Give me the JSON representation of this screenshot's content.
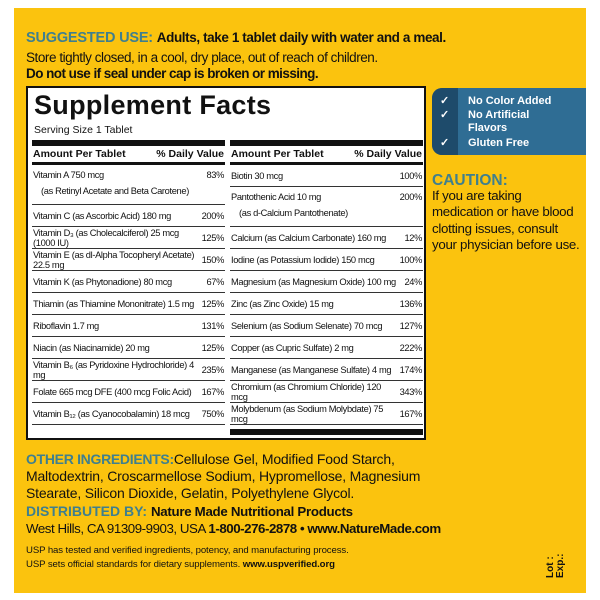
{
  "colors": {
    "background": "#fbc30e",
    "heading_teal": "#3f7f8e",
    "badge_blue": "#2f6d94"
  },
  "suggested_use": {
    "label": "SUGGESTED USE:",
    "text": "Adults, take 1 tablet daily with water and a meal.",
    "storage": "Store tightly closed, in a cool, dry place, out of reach of children.",
    "warning": "Do not use if seal under cap is broken or missing."
  },
  "facts": {
    "title": "Supplement Facts",
    "serving": "Serving Size 1 Tablet",
    "col_amount": "Amount Per Tablet",
    "col_dv": "% Daily Value",
    "left": [
      {
        "name": "Vitamin A  750 mcg",
        "sub": "(as Retinyl Acetate and Beta Carotene)",
        "dv": "83%"
      },
      {
        "name": "Vitamin C (as Ascorbic Acid)  180 mg",
        "dv": "200%"
      },
      {
        "name": "Vitamin D₃ (as Cholecalciferol)  25 mcg (1000 IU)",
        "dv": "125%"
      },
      {
        "name": "Vitamin E (as dl-Alpha Tocopheryl Acetate) 22.5 mg",
        "dv": "150%"
      },
      {
        "name": "Vitamin K (as Phytonadione)  80 mcg",
        "dv": "67%"
      },
      {
        "name": "Thiamin (as Thiamine Mononitrate)  1.5 mg",
        "dv": "125%"
      },
      {
        "name": "Riboflavin  1.7 mg",
        "dv": "131%"
      },
      {
        "name": "Niacin (as Niacinamide)  20 mg",
        "dv": "125%"
      },
      {
        "name": "Vitamin B₆ (as Pyridoxine Hydrochloride)  4 mg",
        "dv": "235%"
      },
      {
        "name": "Folate  665 mcg DFE (400 mcg Folic Acid)",
        "dv": "167%"
      },
      {
        "name": "Vitamin B₁₂ (as Cyanocobalamin)  18 mcg",
        "dv": "750%"
      }
    ],
    "right": [
      {
        "name": "Biotin  30 mcg",
        "dv": "100%"
      },
      {
        "name": "Pantothenic Acid  10 mg",
        "sub": "(as d-Calcium Pantothenate)",
        "dv": "200%"
      },
      {
        "name": "Calcium (as Calcium Carbonate)  160 mg",
        "dv": "12%"
      },
      {
        "name": "Iodine (as Potassium Iodide)  150 mcg",
        "dv": "100%"
      },
      {
        "name": "Magnesium (as Magnesium Oxide)  100 mg",
        "dv": "24%"
      },
      {
        "name": "Zinc (as Zinc Oxide)  15 mg",
        "dv": "136%"
      },
      {
        "name": "Selenium (as Sodium Selenate)  70 mcg",
        "dv": "127%"
      },
      {
        "name": "Copper (as Cupric Sulfate)  2 mg",
        "dv": "222%"
      },
      {
        "name": "Manganese (as Manganese Sulfate)  4 mg",
        "dv": "174%"
      },
      {
        "name": "Chromium (as Chromium Chloride)  120 mcg",
        "dv": "343%"
      },
      {
        "name": "Molybdenum (as Sodium Molybdate)  75 mcg",
        "dv": "167%"
      }
    ]
  },
  "badge": {
    "icon": "checkmark-icon",
    "items": [
      "No Color Added",
      "No Artificial",
      "Flavors",
      "Gluten Free"
    ]
  },
  "caution": {
    "label": "CAUTION:",
    "text": "If you are taking medication or have blood clotting issues, consult your physician before use."
  },
  "other_ingredients": {
    "label": "OTHER INGREDIENTS:",
    "text": "Cellulose Gel, Modified Food Starch, Maltodextrin, Croscarmellose Sodium, Hypromellose, Magnesium Stearate, Silicon Dioxide, Gelatin, Polyethylene Glycol."
  },
  "distributed": {
    "label": "DISTRIBUTED BY:",
    "company": "Nature Made Nutritional Products",
    "address": "West Hills, CA 91309-9903, USA",
    "phone_web": "1-800-276-2878 • www.NatureMade.com"
  },
  "usp": {
    "line1": "USP has tested and verified ingredients, potency, and manufacturing process.",
    "line2": "USP sets official standards for dietary supplements.",
    "url": "www.uspverified.org"
  },
  "lot": {
    "lot": "Lot :",
    "exp": "Exp.:"
  }
}
